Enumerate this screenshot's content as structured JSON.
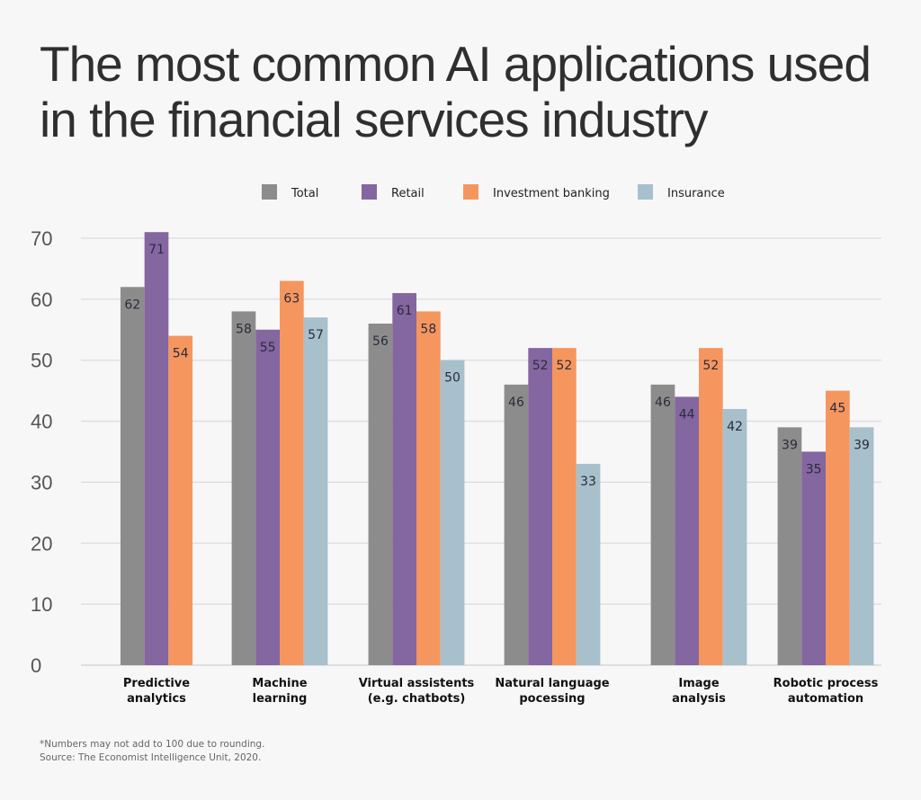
{
  "chart_data": {
    "type": "bar",
    "title": "The most common AI applications used in the financial services industry",
    "title_lines": [
      "The most common AI applications used",
      "in the financial services industry"
    ],
    "categories": [
      [
        "Predictive",
        "analytics"
      ],
      [
        "Machine",
        "learning"
      ],
      [
        "Virtual assistents",
        "(e.g. chatbots)"
      ],
      [
        "Natural language",
        "pocessing"
      ],
      [
        "Image",
        "analysis"
      ],
      [
        "Robotic process",
        "automation"
      ]
    ],
    "series": [
      {
        "name": "Total",
        "color": "#8c8c8c",
        "values": [
          62,
          58,
          56,
          46,
          46,
          39
        ]
      },
      {
        "name": "Retail",
        "color": "#8466a0",
        "values": [
          71,
          55,
          61,
          52,
          44,
          35
        ]
      },
      {
        "name": "Investment banking",
        "color": "#f5965f",
        "values": [
          54,
          63,
          58,
          52,
          52,
          45
        ]
      },
      {
        "name": "Insurance",
        "color": "#a7c0cb",
        "values": [
          null,
          57,
          50,
          33,
          42,
          39
        ]
      }
    ],
    "ylim": [
      0,
      70
    ],
    "yticks": [
      0,
      10,
      20,
      30,
      40,
      50,
      60,
      70
    ],
    "grid": true,
    "legend_position": "top-center",
    "xlabel": "",
    "ylabel": "",
    "footnotes": [
      "*Numbers may not add to 100 due to rounding.",
      "Source: The Economist Intelligence Unit, 2020."
    ]
  }
}
